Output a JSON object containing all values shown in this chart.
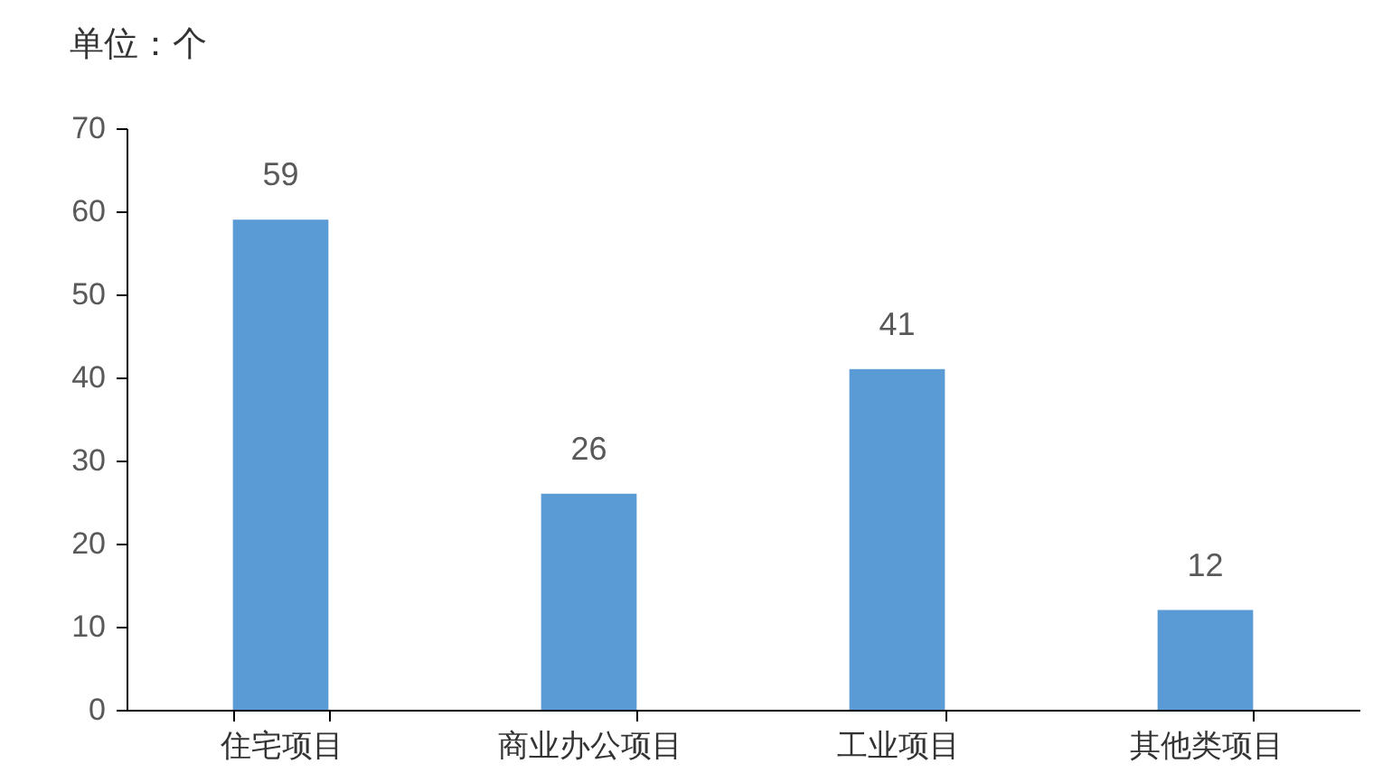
{
  "chart_data": {
    "type": "bar",
    "ylabel": "单位：个",
    "categories": [
      "住宅项目",
      "商业办公项目",
      "工业项目",
      "其他类项目"
    ],
    "values": [
      59,
      26,
      41,
      12
    ],
    "color": "#5b9bd5",
    "ylim": [
      0,
      70
    ],
    "yticks": [
      0,
      10,
      20,
      30,
      40,
      50,
      60,
      70
    ],
    "grid": false,
    "data_labels": true
  }
}
